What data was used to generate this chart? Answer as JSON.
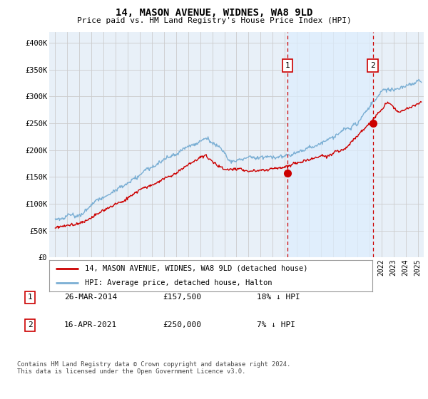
{
  "title": "14, MASON AVENUE, WIDNES, WA8 9LD",
  "subtitle": "Price paid vs. HM Land Registry's House Price Index (HPI)",
  "ylabel_ticks": [
    "£0",
    "£50K",
    "£100K",
    "£150K",
    "£200K",
    "£250K",
    "£300K",
    "£350K",
    "£400K"
  ],
  "ytick_values": [
    0,
    50000,
    100000,
    150000,
    200000,
    250000,
    300000,
    350000,
    400000
  ],
  "ylim": [
    0,
    420000
  ],
  "xlim_start": 1994.5,
  "xlim_end": 2025.5,
  "red_line_color": "#cc0000",
  "blue_line_color": "#7bafd4",
  "shade_color": "#ddeeff",
  "vline_color": "#cc0000",
  "marker1_x": 2014.23,
  "marker1_y": 157500,
  "marker2_x": 2021.29,
  "marker2_y": 250000,
  "transaction1_date": "26-MAR-2014",
  "transaction1_price": "£157,500",
  "transaction1_hpi": "18% ↓ HPI",
  "transaction2_date": "16-APR-2021",
  "transaction2_price": "£250,000",
  "transaction2_hpi": "7% ↓ HPI",
  "legend_line1": "14, MASON AVENUE, WIDNES, WA8 9LD (detached house)",
  "legend_line2": "HPI: Average price, detached house, Halton",
  "footnote": "Contains HM Land Registry data © Crown copyright and database right 2024.\nThis data is licensed under the Open Government Licence v3.0.",
  "bg_color": "#e8f0f8",
  "plot_bg": "#ffffff",
  "grid_color": "#cccccc"
}
